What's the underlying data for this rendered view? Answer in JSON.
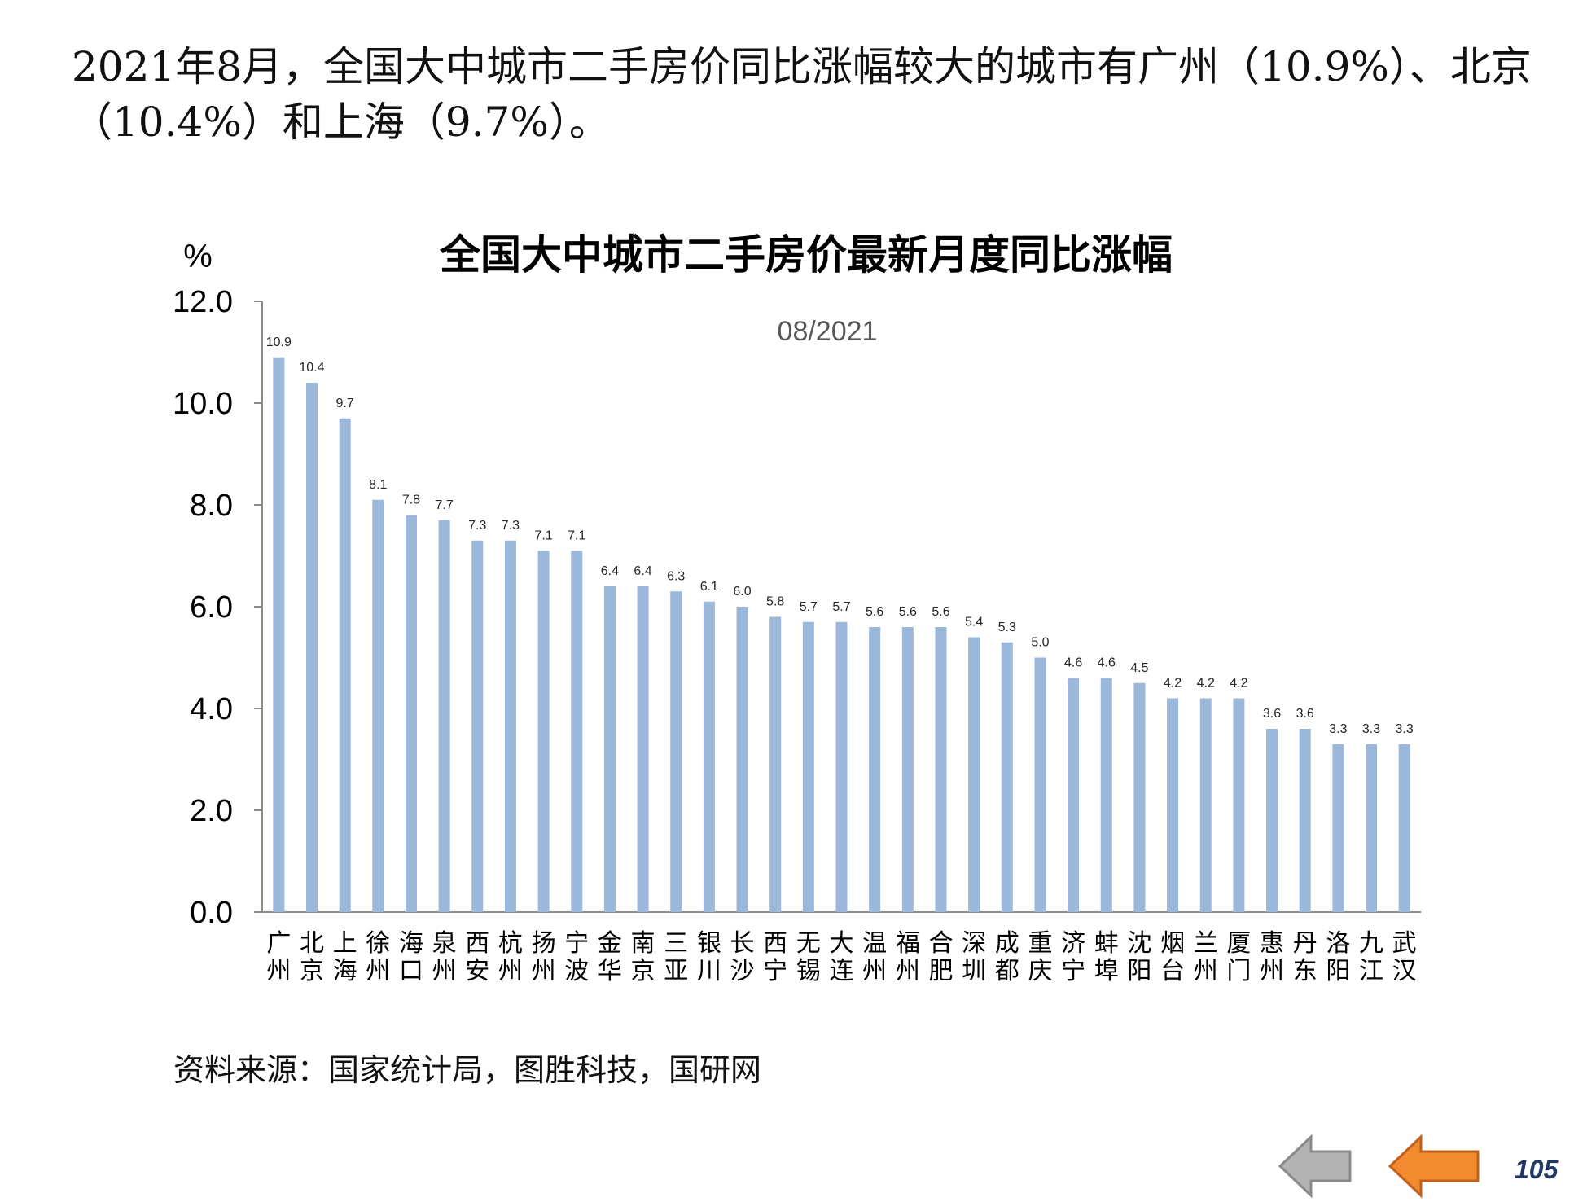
{
  "heading": "2021年8月，全国大中城市二手房价同比涨幅较大的城市有广州（10.9%）、北京（10.4%）和上海（9.7%）。",
  "source": "资料来源：国家统计局，图胜科技，国研网",
  "page_number": "105",
  "nav": {
    "prev_icon": "arrow-left-gray-icon",
    "next_icon": "arrow-left-orange-icon"
  },
  "colors": {
    "bar": "#9bb7d9",
    "axis": "#8c8c8c",
    "prev_arrow": "#b3b3b3",
    "next_arrow": "#f28a30"
  },
  "chart_data": {
    "type": "bar",
    "title": "全国大中城市二手房价最新月度同比涨幅",
    "subtitle": "08/2021",
    "ylabel": "%",
    "ylim": [
      0,
      12
    ],
    "yticks": [
      "0.0",
      "2.0",
      "4.0",
      "6.0",
      "8.0",
      "10.0",
      "12.0"
    ],
    "categories": [
      "广州",
      "北京",
      "上海",
      "徐州",
      "海口",
      "泉州",
      "西安",
      "杭州",
      "扬州",
      "宁波",
      "金华",
      "南京",
      "三亚",
      "银川",
      "长沙",
      "西宁",
      "无锡",
      "大连",
      "温州",
      "福州",
      "合肥",
      "深圳",
      "成都",
      "重庆",
      "济宁",
      "蚌埠",
      "沈阳",
      "烟台",
      "兰州",
      "厦门",
      "惠州",
      "丹东",
      "洛阳",
      "九江",
      "武汉"
    ],
    "values": [
      10.9,
      10.4,
      9.7,
      8.1,
      7.8,
      7.7,
      7.3,
      7.3,
      7.1,
      7.1,
      6.4,
      6.4,
      6.3,
      6.1,
      6.0,
      5.8,
      5.7,
      5.7,
      5.6,
      5.6,
      5.6,
      5.4,
      5.3,
      5.0,
      4.6,
      4.6,
      4.5,
      4.2,
      4.2,
      4.2,
      3.6,
      3.6,
      3.3,
      3.3,
      3.3
    ],
    "labels": [
      "10.9",
      "10.4",
      "9.7",
      "8.1",
      "7.8",
      "7.7",
      "7.3",
      "7.3",
      "7.1",
      "7.1",
      "6.4",
      "6.4",
      "6.3",
      "6.1",
      "6.0",
      "5.8",
      "5.7",
      "5.7",
      "5.6",
      "5.6",
      "5.6",
      "5.4",
      "5.3",
      "5.0",
      "4.6",
      "4.6",
      "4.5",
      "4.2",
      "4.2",
      "4.2",
      "3.6",
      "3.6",
      "3.3",
      "3.3",
      "3.3"
    ],
    "grid": false,
    "legend": "none"
  }
}
